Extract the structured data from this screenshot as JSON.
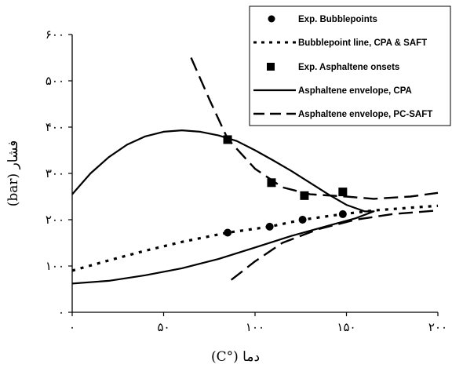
{
  "chart_data": {
    "type": "line",
    "xlabel": "دما (°C)",
    "ylabel": "فشار (bar)",
    "xlim": [
      0,
      200
    ],
    "ylim": [
      0,
      600
    ],
    "x_ticks": [
      0,
      50,
      100,
      150,
      200
    ],
    "y_ticks": [
      0,
      100,
      200,
      300,
      400,
      500,
      600
    ],
    "x_tick_labels": [
      "۰",
      "۵۰",
      "۱۰۰",
      "۱۵۰",
      "۲۰۰"
    ],
    "y_tick_labels": [
      "۰",
      "۱۰۰",
      "۲۰۰",
      "۳۰۰",
      "۴۰۰",
      "۵۰۰",
      "۶۰۰"
    ],
    "grid": false,
    "legend_position": "top-right",
    "legend": [
      "Exp. Bubblepoints",
      "Bubblepoint line,  CPA & SAFT",
      "Exp. Asphaltene onsets",
      "Asphaltene envelope, CPA",
      "Asphaltene envelope, PC-SAFT"
    ],
    "series": [
      {
        "name": "Exp. Bubblepoints",
        "style": "circle-markers",
        "x": [
          85,
          108,
          126,
          148
        ],
        "y": [
          172,
          185,
          200,
          212
        ]
      },
      {
        "name": "Bubblepoint line,  CPA & SAFT",
        "style": "dotted",
        "x": [
          0,
          20,
          40,
          60,
          85,
          108,
          126,
          148,
          165,
          185,
          200
        ],
        "y": [
          90,
          112,
          133,
          152,
          172,
          185,
          200,
          212,
          220,
          226,
          230
        ]
      },
      {
        "name": "Exp. Asphaltene onsets",
        "style": "square-markers",
        "x": [
          85,
          109,
          127,
          148
        ],
        "y": [
          373,
          280,
          252,
          260
        ]
      },
      {
        "name": "Asphaltene envelope, CPA",
        "style": "solid",
        "x": [
          0,
          10,
          20,
          30,
          40,
          50,
          60,
          70,
          80,
          90,
          100,
          110,
          120,
          130,
          140,
          150,
          160,
          165,
          155,
          140,
          120,
          100,
          80,
          60,
          40,
          20,
          0
        ],
        "y": [
          255,
          300,
          335,
          362,
          380,
          390,
          393,
          390,
          382,
          370,
          350,
          328,
          305,
          280,
          255,
          232,
          218,
          218,
          203,
          187,
          165,
          140,
          115,
          95,
          80,
          68,
          62
        ]
      },
      {
        "name": "Asphaltene envelope, PC-SAFT",
        "style": "dashed",
        "x": [
          65,
          75,
          85,
          100,
          115,
          130,
          150,
          165,
          185,
          200
        ],
        "y": [
          550,
          460,
          375,
          310,
          270,
          255,
          250,
          245,
          250,
          258
        ]
      },
      {
        "name": "Asphaltene envelope, PC-SAFT",
        "style": "dashed",
        "x": [
          87,
          100,
          115,
          135,
          155,
          175,
          200
        ],
        "y": [
          70,
          110,
          150,
          180,
          200,
          212,
          220
        ]
      }
    ]
  }
}
